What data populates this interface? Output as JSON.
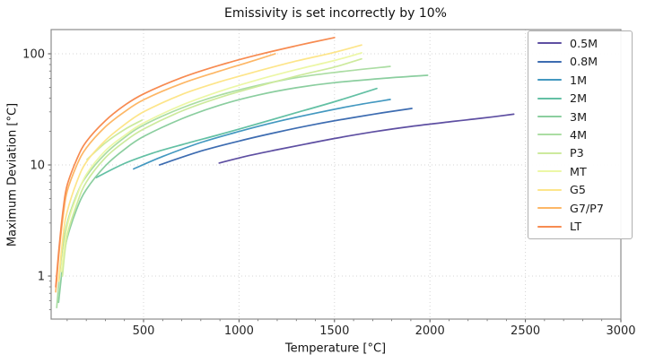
{
  "chart_data": {
    "type": "line",
    "title": "Emissivity is set incorrectly by 10%",
    "xlabel": "Temperature [°C]",
    "ylabel": "Maximum Deviation [°C]",
    "x_ticks": [
      500,
      1000,
      1500,
      2000,
      2500,
      3000
    ],
    "y_ticks": [
      1,
      10,
      100
    ],
    "xlim": [
      0,
      3000
    ],
    "ylim": [
      0.4,
      162
    ],
    "y_scale": "log",
    "grid": "dotted",
    "legend_position": "upper-right",
    "frame_color": "#8c8c8c",
    "grid_color": "#d4d4d4",
    "series": [
      {
        "name": "0.5M",
        "color": "#5e4fa2",
        "segments": [
          [
            [
              896,
              10.4
            ],
            [
              1050,
              12.1
            ],
            [
              1200,
              13.7
            ],
            [
              1350,
              15.4
            ],
            [
              1500,
              17.3
            ],
            [
              1700,
              19.8
            ],
            [
              1900,
              22.2
            ],
            [
              2100,
              24.4
            ],
            [
              2270,
              26.3
            ],
            [
              2439,
              28.6
            ]
          ]
        ]
      },
      {
        "name": "0.8M",
        "color": "#3d6cb1",
        "segments": [
          [
            [
              583,
              10.0
            ],
            [
              800,
              13.3
            ],
            [
              1000,
              16.4
            ],
            [
              1200,
              19.7
            ],
            [
              1400,
              23.2
            ],
            [
              1600,
              26.7
            ],
            [
              1750,
              29.4
            ],
            [
              1905,
              32.2
            ]
          ]
        ]
      },
      {
        "name": "1M",
        "color": "#4398c0",
        "segments": [
          [
            [
              448,
              9.2
            ],
            [
              600,
              11.9
            ],
            [
              800,
              15.9
            ],
            [
              1000,
              20.0
            ],
            [
              1200,
              24.5
            ],
            [
              1400,
              29.2
            ],
            [
              1600,
              34.2
            ],
            [
              1792,
              38.8
            ]
          ]
        ]
      },
      {
        "name": "2M",
        "color": "#63c0a4",
        "segments": [
          [
            [
              252,
              7.7
            ],
            [
              400,
              10.3
            ],
            [
              550,
              12.8
            ],
            [
              700,
              15.2
            ],
            [
              900,
              18.8
            ],
            [
              1100,
              23.5
            ],
            [
              1300,
              29.5
            ],
            [
              1500,
              37.0
            ],
            [
              1722,
              48.7
            ]
          ]
        ]
      },
      {
        "name": "3M",
        "color": "#8bce9f",
        "segments": [
          [
            [
              55,
              0.58
            ],
            [
              80,
              1.4
            ],
            [
              100,
              2.2
            ],
            [
              150,
              4.0
            ],
            [
              200,
              6.0
            ],
            [
              300,
              9.8
            ],
            [
              400,
              13.8
            ],
            [
              500,
              18.0
            ],
            [
              700,
              26.0
            ],
            [
              900,
              34.5
            ],
            [
              1100,
              42.5
            ],
            [
              1300,
              49.5
            ],
            [
              1500,
              55.0
            ],
            [
              1750,
              60.0
            ],
            [
              1988,
              64.0
            ]
          ]
        ]
      },
      {
        "name": "4M",
        "color": "#abdda3",
        "segments": [
          [
            [
              45,
              0.52
            ],
            [
              70,
              1.5
            ],
            [
              100,
              3.0
            ],
            [
              150,
              5.4
            ],
            [
              200,
              7.9
            ],
            [
              300,
              12.6
            ],
            [
              400,
              17.6
            ],
            [
              500,
              22.8
            ],
            [
              700,
              32.5
            ],
            [
              900,
              42.5
            ],
            [
              1100,
              52.0
            ],
            [
              1300,
              61.0
            ],
            [
              1500,
              68.0
            ],
            [
              1792,
              77.0
            ]
          ]
        ]
      },
      {
        "name": "P3",
        "color": "#cdea9d",
        "segments": [
          [
            [
              75,
              1.0
            ],
            [
              100,
              2.3
            ],
            [
              150,
              4.4
            ],
            [
              200,
              7.0
            ],
            [
              300,
              11.6
            ],
            [
              400,
              16.2
            ],
            [
              500,
              21.0
            ],
            [
              700,
              30.5
            ],
            [
              900,
              40.5
            ],
            [
              1100,
              51.0
            ],
            [
              1300,
              63.0
            ],
            [
              1500,
              76.0
            ],
            [
              1642,
              90.0
            ]
          ],
          [
            [
              204,
              11.2
            ],
            [
              300,
              15.8
            ],
            [
              400,
              20.8
            ],
            [
              492,
              25.3
            ]
          ]
        ]
      },
      {
        "name": "MT",
        "color": "#ecf7a6",
        "segments": [
          [
            [
              70,
              1.1
            ],
            [
              100,
              2.8
            ],
            [
              150,
              5.2
            ],
            [
              200,
              8.2
            ],
            [
              300,
              13.4
            ],
            [
              400,
              18.4
            ],
            [
              500,
              23.8
            ],
            [
              700,
              34.5
            ],
            [
              900,
              46.0
            ],
            [
              1100,
              58.5
            ],
            [
              1300,
              72.0
            ],
            [
              1500,
              87.0
            ],
            [
              1642,
              102.0
            ]
          ]
        ]
      },
      {
        "name": "G5",
        "color": "#fde58a",
        "segments": [
          [
            [
              55,
              0.9
            ],
            [
              80,
              2.4
            ],
            [
              100,
              3.8
            ],
            [
              150,
              7.0
            ],
            [
              200,
              10.6
            ],
            [
              300,
              16.6
            ],
            [
              400,
              23.0
            ],
            [
              500,
              30.0
            ],
            [
              700,
              43.0
            ],
            [
              900,
              56.0
            ],
            [
              1100,
              70.0
            ],
            [
              1300,
              86.0
            ],
            [
              1500,
              103.0
            ],
            [
              1642,
              120.0
            ]
          ]
        ]
      },
      {
        "name": "G7/P7",
        "color": "#fdb766",
        "segments": [
          [
            [
              40,
              0.72
            ],
            [
              60,
              1.8
            ],
            [
              80,
              3.6
            ],
            [
              100,
              5.8
            ],
            [
              150,
              9.9
            ],
            [
              200,
              14.2
            ],
            [
              300,
              22.0
            ],
            [
              400,
              30.0
            ],
            [
              500,
              38.5
            ],
            [
              700,
              54.0
            ],
            [
              900,
              70.0
            ],
            [
              1050,
              84.0
            ],
            [
              1190,
              100.0
            ]
          ]
        ]
      },
      {
        "name": "LT",
        "color": "#f78b51",
        "segments": [
          [
            [
              40,
              0.8
            ],
            [
              60,
              2.0
            ],
            [
              80,
              4.1
            ],
            [
              100,
              6.6
            ],
            [
              150,
              11.2
            ],
            [
              200,
              16.2
            ],
            [
              300,
              25.0
            ],
            [
              400,
              34.3
            ],
            [
              500,
              43.5
            ],
            [
              700,
              61.0
            ],
            [
              900,
              79.0
            ],
            [
              1100,
              98.0
            ],
            [
              1300,
              118.0
            ],
            [
              1500,
              140.0
            ]
          ]
        ]
      }
    ]
  }
}
